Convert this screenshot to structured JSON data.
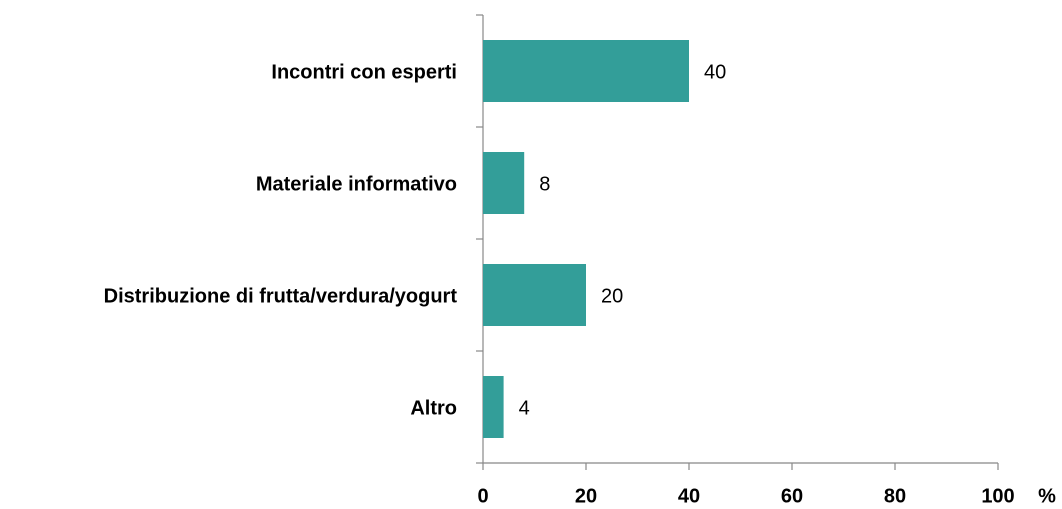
{
  "chart_data": {
    "type": "bar",
    "orientation": "horizontal",
    "categories": [
      "Incontri con esperti",
      "Materiale informativo",
      "Distribuzione di frutta/verdura/yogurt",
      "Altro"
    ],
    "values": [
      40,
      8,
      20,
      4
    ],
    "color": "#339e99",
    "xlabel": "%",
    "xlim": [
      0,
      100
    ],
    "xticks": [
      0,
      20,
      40,
      60,
      80,
      100
    ],
    "grid": false
  }
}
